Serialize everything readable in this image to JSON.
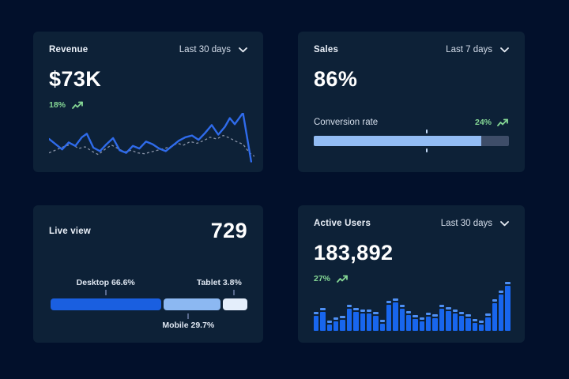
{
  "colors": {
    "page_bg": "#02102B",
    "card_bg": "#0D2137",
    "text_primary": "#FFFFFF",
    "text_secondary": "#D4DDEA",
    "positive_green": "#85D795",
    "line_blue": "#2F6BEB",
    "line_dashed_gray": "#8A94A8",
    "bar_blue": "#1866EE",
    "bar_cap_blue": "#4E90F5",
    "progress_fill": "#92BCF4",
    "progress_track": "#3E4D68",
    "segment_desktop": "#1A5FE0",
    "segment_mobile": "#8CB8F2",
    "segment_tablet": "#E4EEFB"
  },
  "cards": {
    "revenue": {
      "title": "Revenue",
      "range": "Last 30 days",
      "value": "$73K",
      "delta": "18%"
    },
    "sales": {
      "title": "Sales",
      "range": "Last 7 days",
      "value": "86%",
      "metric_label": "Conversion rate",
      "delta": "24%"
    },
    "live_view": {
      "title": "Live view",
      "value": "729",
      "segments": [
        {
          "display": "Desktop 66.6%"
        },
        {
          "display": "Mobile 29.7%"
        },
        {
          "display": "Tablet 3.8%"
        }
      ]
    },
    "active_users": {
      "title": "Active Users",
      "range": "Last 30 days",
      "value": "183,892",
      "delta": "27%"
    }
  },
  "chart_data": [
    {
      "type": "line",
      "title": "Revenue",
      "period": "Last 30 days",
      "current_value": "$73K",
      "change_pct": 18,
      "axes": "hidden (sparkline, relative units, y inverted screen coords 0-60)",
      "legend": "none",
      "series": [
        {
          "name": "current",
          "style": "solid",
          "color": "#2F6BEB",
          "points": [
            [
              0,
              30
            ],
            [
              8,
              36
            ],
            [
              16,
              42
            ],
            [
              24,
              34
            ],
            [
              32,
              38
            ],
            [
              40,
              28
            ],
            [
              46,
              24
            ],
            [
              54,
              40
            ],
            [
              62,
              44
            ],
            [
              70,
              36
            ],
            [
              78,
              29
            ],
            [
              86,
              43
            ],
            [
              94,
              46
            ],
            [
              102,
              38
            ],
            [
              110,
              41
            ],
            [
              118,
              33
            ],
            [
              126,
              36
            ],
            [
              134,
              41
            ],
            [
              142,
              44
            ],
            [
              150,
              38
            ],
            [
              158,
              32
            ],
            [
              166,
              28
            ],
            [
              174,
              26
            ],
            [
              182,
              31
            ],
            [
              190,
              23
            ],
            [
              198,
              14
            ],
            [
              206,
              25
            ],
            [
              214,
              16
            ],
            [
              220,
              6
            ],
            [
              226,
              13
            ],
            [
              236,
              0
            ],
            [
              246,
              56
            ]
          ]
        },
        {
          "name": "previous",
          "style": "dashed",
          "color": "#8A94A8",
          "points": [
            [
              0,
              46
            ],
            [
              10,
              42
            ],
            [
              20,
              38
            ],
            [
              28,
              36
            ],
            [
              36,
              41
            ],
            [
              44,
              39
            ],
            [
              52,
              44
            ],
            [
              60,
              48
            ],
            [
              68,
              42
            ],
            [
              76,
              37
            ],
            [
              84,
              41
            ],
            [
              92,
              45
            ],
            [
              100,
              43
            ],
            [
              108,
              46
            ],
            [
              116,
              47
            ],
            [
              124,
              45
            ],
            [
              132,
              43
            ],
            [
              140,
              41
            ],
            [
              148,
              39
            ],
            [
              156,
              35
            ],
            [
              164,
              37
            ],
            [
              172,
              33
            ],
            [
              180,
              35
            ],
            [
              188,
              32
            ],
            [
              196,
              28
            ],
            [
              204,
              30
            ],
            [
              212,
              26
            ],
            [
              220,
              29
            ],
            [
              228,
              33
            ],
            [
              236,
              36
            ],
            [
              244,
              46
            ],
            [
              250,
              50
            ]
          ]
        }
      ]
    },
    {
      "type": "progress",
      "title": "Sales",
      "period": "Last 7 days",
      "value_pct": 86,
      "metric": "Conversion rate",
      "change_pct": 24,
      "fill_pct": 86,
      "marker_pct": 58
    },
    {
      "type": "stacked-bar",
      "title": "Live view",
      "value": 729,
      "segments": [
        {
          "label": "Desktop",
          "pct": 66.6,
          "display_width_pct": 56.6,
          "color": "#1A5FE0",
          "tick_pct": 28,
          "label_side": "top"
        },
        {
          "label": "Mobile",
          "pct": 29.7,
          "display_width_pct": 28.7,
          "color": "#8CB8F2",
          "tick_pct": 70,
          "label_side": "bottom"
        },
        {
          "label": "Tablet",
          "pct": 3.8,
          "display_width_pct": 12.7,
          "color": "#E4EEFB",
          "tick_pct": 93,
          "label_side": "top"
        }
      ]
    },
    {
      "type": "bar",
      "title": "Active Users",
      "period": "Last 30 days",
      "current_value": 183892,
      "change_pct": 27,
      "unit": "relative bar height % (no axis labels shown)",
      "values": [
        39,
        46,
        21,
        27,
        30,
        54,
        46,
        43,
        44,
        39,
        23,
        61,
        66,
        54,
        41,
        32,
        27,
        37,
        34,
        54,
        49,
        44,
        39,
        34,
        25,
        21,
        36,
        64,
        82,
        100
      ]
    }
  ]
}
